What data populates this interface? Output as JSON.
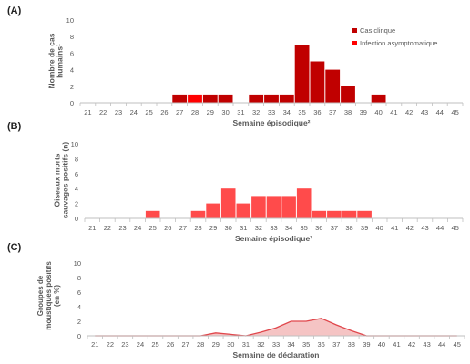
{
  "colors": {
    "clinical": "#C00000",
    "asymptomatic": "#FF0000",
    "birds": "#FF4B4B",
    "mosquito_line": "#E0474C",
    "mosquito_fill": "#F5C4C4",
    "axis": "#BFBFBF",
    "text": "#595959"
  },
  "chart_data": [
    {
      "panel": "(A)",
      "type": "bar",
      "stacked": true,
      "categories": [
        "21",
        "22",
        "23",
        "24",
        "25",
        "26",
        "27",
        "28",
        "29",
        "30",
        "31",
        "32",
        "33",
        "34",
        "35",
        "36",
        "37",
        "38",
        "39",
        "40",
        "41",
        "42",
        "43",
        "44",
        "45"
      ],
      "series": [
        {
          "name": "Cas clinque",
          "color": "#C00000",
          "values": [
            0,
            0,
            0,
            0,
            0,
            0,
            1,
            0,
            1,
            1,
            0,
            1,
            1,
            1,
            7,
            5,
            4,
            2,
            0,
            1,
            0,
            0,
            0,
            0,
            0
          ]
        },
        {
          "name": "Infection asymptomatique",
          "color": "#FF0000",
          "values": [
            0,
            0,
            0,
            0,
            0,
            0,
            0,
            1,
            0,
            0,
            0,
            0,
            0,
            0,
            0,
            0,
            0,
            0,
            0,
            0,
            0,
            0,
            0,
            0,
            0
          ]
        }
      ],
      "ylim": [
        0,
        10
      ],
      "yticks": [
        0,
        2,
        4,
        6,
        8,
        10
      ],
      "ylabel": [
        "Nombre de cas",
        "humains¹"
      ],
      "xlabel": "Semaine épisodique²",
      "legend": "top-right",
      "grid": false
    },
    {
      "panel": "(B)",
      "type": "bar",
      "categories": [
        "21",
        "22",
        "23",
        "24",
        "25",
        "26",
        "27",
        "28",
        "29",
        "30",
        "31",
        "32",
        "33",
        "34",
        "35",
        "36",
        "37",
        "38",
        "39",
        "40",
        "41",
        "42",
        "43",
        "44",
        "45"
      ],
      "series": [
        {
          "name": "",
          "color": "#FF4B4B",
          "values": [
            0,
            0,
            0,
            0,
            1,
            0,
            0,
            1,
            2,
            4,
            2,
            3,
            3,
            3,
            4,
            1,
            1,
            1,
            1,
            0,
            0,
            0,
            0,
            0,
            0
          ]
        }
      ],
      "ylim": [
        0,
        10
      ],
      "yticks": [
        0,
        2,
        4,
        6,
        8,
        10
      ],
      "ylabel": [
        "Oiseaux morts",
        "sauvages positifs (n)"
      ],
      "xlabel": "Semaine épisodique³",
      "grid": false
    },
    {
      "panel": "(C)",
      "type": "area",
      "categories": [
        "21",
        "22",
        "23",
        "24",
        "25",
        "26",
        "27",
        "28",
        "29",
        "30",
        "31",
        "32",
        "33",
        "34",
        "35",
        "36",
        "37",
        "38",
        "39",
        "40",
        "41",
        "42",
        "43",
        "44",
        "45"
      ],
      "series": [
        {
          "name": "",
          "color": "#E0474C",
          "values": [
            0,
            0,
            0,
            0,
            0,
            0,
            0,
            0,
            0.4,
            0.2,
            0,
            0.5,
            1.1,
            2.0,
            2.0,
            2.4,
            1.5,
            0.7,
            0,
            0,
            0,
            0,
            0,
            0,
            0
          ]
        }
      ],
      "ylim": [
        0,
        10
      ],
      "yticks": [
        0,
        2,
        4,
        6,
        8,
        10
      ],
      "ylabel": [
        "Groupes de",
        "moustiques positifs",
        "(en %)"
      ],
      "xlabel": "Semaine de déclaration",
      "grid": false
    }
  ]
}
